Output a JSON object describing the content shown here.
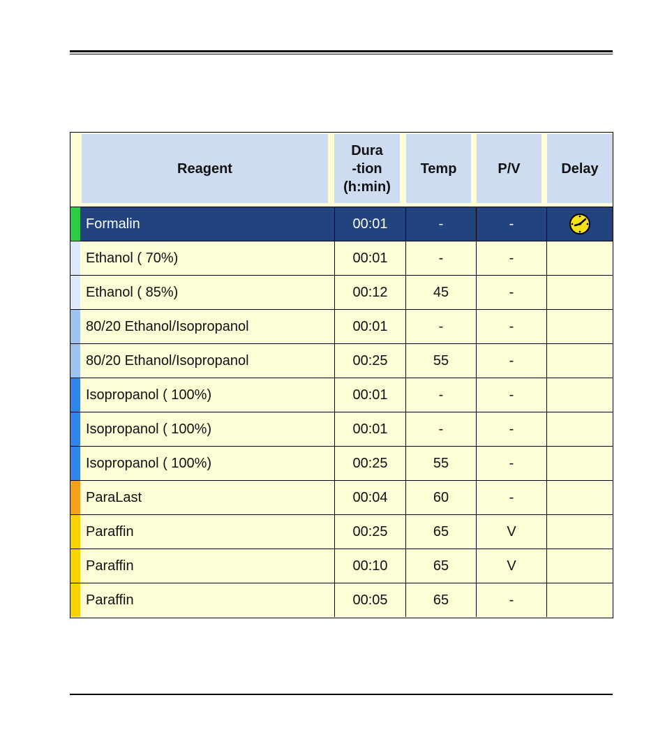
{
  "table": {
    "headers": {
      "reagent": "Reagent",
      "duration": "Dura\n-tion\n(h:min)",
      "temp": "Temp",
      "pv": "P/V",
      "delay": "Delay"
    },
    "rows": [
      {
        "reagent": "Formalin",
        "duration": "00:01",
        "temp": "-",
        "pv": "-",
        "delay_icon": "clock-icon",
        "stripe_color": "#2ecc40",
        "selected": true
      },
      {
        "reagent": "Ethanol ( 70%)",
        "duration": "00:01",
        "temp": "-",
        "pv": "-",
        "delay_icon": "",
        "stripe_color": "#dde8f8",
        "selected": false
      },
      {
        "reagent": "Ethanol ( 85%)",
        "duration": "00:12",
        "temp": "45",
        "pv": "-",
        "delay_icon": "",
        "stripe_color": "#dde8f8",
        "selected": false
      },
      {
        "reagent": "80/20 Ethanol/Isopropanol",
        "duration": "00:01",
        "temp": "-",
        "pv": "-",
        "delay_icon": "",
        "stripe_color": "#9cc4ef",
        "selected": false
      },
      {
        "reagent": "80/20 Ethanol/Isopropanol",
        "duration": "00:25",
        "temp": "55",
        "pv": "-",
        "delay_icon": "",
        "stripe_color": "#9cc4ef",
        "selected": false
      },
      {
        "reagent": "Isopropanol ( 100%)",
        "duration": "00:01",
        "temp": "-",
        "pv": "-",
        "delay_icon": "",
        "stripe_color": "#2f86e6",
        "selected": false
      },
      {
        "reagent": "Isopropanol ( 100%)",
        "duration": "00:01",
        "temp": "-",
        "pv": "-",
        "delay_icon": "",
        "stripe_color": "#2f86e6",
        "selected": false
      },
      {
        "reagent": "Isopropanol ( 100%)",
        "duration": "00:25",
        "temp": "55",
        "pv": "-",
        "delay_icon": "",
        "stripe_color": "#2f86e6",
        "selected": false
      },
      {
        "reagent": "ParaLast",
        "duration": "00:04",
        "temp": "60",
        "pv": "-",
        "delay_icon": "",
        "stripe_color": "#f5a01a",
        "selected": false
      },
      {
        "reagent": "Paraffin",
        "duration": "00:25",
        "temp": "65",
        "pv": "V",
        "delay_icon": "",
        "stripe_color": "#f5d200",
        "selected": false
      },
      {
        "reagent": "Paraffin",
        "duration": "00:10",
        "temp": "65",
        "pv": "V",
        "delay_icon": "",
        "stripe_color": "#f5d200",
        "selected": false
      },
      {
        "reagent": "Paraffin",
        "duration": "00:05",
        "temp": "65",
        "pv": "-",
        "delay_icon": "",
        "stripe_color": "#f5d200",
        "selected": false
      }
    ]
  },
  "colors": {
    "header_bg": "#cddcf1",
    "row_bg": "#fdfdd6",
    "selected_bg": "#21447f",
    "clock_face": "#f7e21a"
  }
}
